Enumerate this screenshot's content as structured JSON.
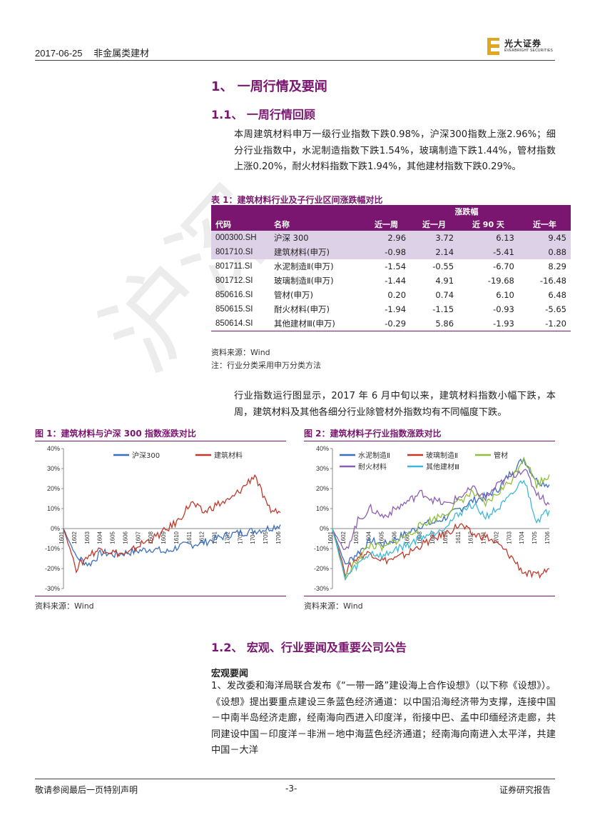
{
  "header": {
    "date": "2017-06-25",
    "category": "非金属类建材"
  },
  "logo": {
    "cn": "光大证券",
    "en": "EVERBRIGHT SECURITIES",
    "color": "#e0a81c"
  },
  "section1": {
    "title": "1、 一周行情及要闻"
  },
  "section11": {
    "title": "1.1、 一周行情回顾"
  },
  "para1": "本周建筑材料申万一级行业指数下跌0.98%，沪深300指数上涨2.96%；细分行业指数中，水泥制造指数下跌1.54%，玻璃制造下跌1.44%，管材指数上涨0.20%，耐火材料指数下跌1.94%，其他建材指数下跌0.29%。",
  "table": {
    "title": "表 1：建筑材料行业及子行业区间涨跌幅对比",
    "group_header": "涨跌幅",
    "headers": [
      "代码",
      "名称",
      "近一周",
      "近一月",
      "近 90 天",
      "近一年"
    ],
    "rows": [
      [
        "000300.SH",
        "沪深 300",
        "2.96",
        "3.72",
        "6.13",
        "9.45"
      ],
      [
        "801710.SI",
        "建筑材料(申万)",
        "-0.98",
        "2.14",
        "-5.41",
        "0.88"
      ],
      [
        "801711.SI",
        "水泥制造Ⅱ(申万)",
        "-1.54",
        "-0.55",
        "-6.70",
        "8.29"
      ],
      [
        "801712.SI",
        "玻璃制造Ⅱ(申万)",
        "-1.44",
        "4.91",
        "-19.68",
        "-16.48"
      ],
      [
        "850616.SI",
        "管材(申万)",
        "0.20",
        "0.74",
        "6.10",
        "6.48"
      ],
      [
        "850615.SI",
        "耐火材料(申万)",
        "-1.94",
        "-1.15",
        "-0.93",
        "-5.65"
      ],
      [
        "850614.SI",
        "其他建材Ⅲ(申万)",
        "-0.29",
        "5.86",
        "-1.93",
        "-1.20"
      ]
    ],
    "source": "资料来源：Wind",
    "note": "注：行业分类采用申万分类方法"
  },
  "para2": "行业指数运行图显示，2017 年 6 月中旬以来，建筑材料指数小幅下跌，本周，建筑材料及其他各细分行业除管材外指数均有不同幅度下跌。",
  "chart_data": [
    {
      "type": "line",
      "title": "图 1：建筑材料与沪深 300 指数涨跌对比",
      "source": "资料来源：Wind",
      "ylim": [
        -30,
        40
      ],
      "yticks": [
        "40%",
        "30%",
        "20%",
        "10%",
        "0%",
        "-10%",
        "-20%",
        "-30%"
      ],
      "xticks": [
        "1601",
        "1602",
        "1603",
        "1604",
        "1605",
        "1606",
        "1607",
        "1608",
        "1609",
        "1610",
        "1611",
        "1612",
        "1701",
        "1702",
        "1703",
        "1704",
        "1705",
        "1706"
      ],
      "series": [
        {
          "name": "沪深300",
          "color": "#3a6fbf",
          "values": [
            0,
            -14,
            -18,
            -12,
            -13,
            -12,
            -11,
            -10,
            -12,
            -9,
            -8,
            -7,
            -5,
            -3,
            -2,
            -1,
            0,
            2
          ]
        },
        {
          "name": "建筑材料",
          "color": "#c0392b",
          "values": [
            0,
            -20,
            -13,
            -10,
            -12,
            -13,
            -8,
            -5,
            -1,
            4,
            13,
            8,
            12,
            14,
            20,
            27,
            10,
            8
          ]
        }
      ]
    },
    {
      "type": "line",
      "title": "图 2：建筑材料子行业指数涨跌对比",
      "source": "资料来源：Wind",
      "ylim": [
        -30,
        40
      ],
      "yticks": [
        "40%",
        "30%",
        "20%",
        "10%",
        "0%",
        "-10%",
        "-20%",
        "-30%"
      ],
      "xticks": [
        "1601",
        "1602",
        "1603",
        "1604",
        "1605",
        "1606",
        "1607",
        "1608",
        "1609",
        "1610",
        "1611",
        "1612",
        "1701",
        "1702",
        "1703",
        "1704",
        "1705",
        "1706"
      ],
      "series": [
        {
          "name": "水泥制造Ⅱ",
          "color": "#3a6fbf",
          "values": [
            0,
            -18,
            -12,
            -6,
            -8,
            -5,
            -2,
            2,
            3,
            6,
            10,
            14,
            16,
            20,
            28,
            35,
            24,
            22
          ]
        },
        {
          "name": "玻璃制造Ⅱ",
          "color": "#c0392b",
          "values": [
            0,
            -22,
            -14,
            -12,
            -16,
            -15,
            -12,
            -8,
            -5,
            -2,
            2,
            -3,
            -4,
            -8,
            -14,
            -22,
            -24,
            -20
          ]
        },
        {
          "name": "管材",
          "color": "#8fbf3a",
          "values": [
            0,
            -25,
            -15,
            -8,
            -10,
            -6,
            -3,
            2,
            5,
            8,
            14,
            18,
            12,
            18,
            24,
            36,
            22,
            27
          ]
        },
        {
          "name": "耐火材料",
          "color": "#8e5fb0",
          "values": [
            0,
            -12,
            4,
            10,
            6,
            10,
            14,
            18,
            14,
            12,
            16,
            20,
            15,
            22,
            26,
            30,
            18,
            12
          ]
        },
        {
          "name": "其他建材Ⅲ",
          "color": "#3fb8d6",
          "values": [
            0,
            -25,
            -18,
            -12,
            -14,
            -10,
            -8,
            -4,
            -2,
            2,
            8,
            12,
            6,
            10,
            16,
            25,
            4,
            9
          ]
        }
      ]
    }
  ],
  "section12": {
    "title": "1.2、 宏观、行业要闻及重要公司公告"
  },
  "sub_heading": "宏观要闻",
  "para3": "1、发改委和海洋局联合发布《“一带一路”建设海上合作设想》（以下称《设想》）。《设想》提出要重点建设三条蓝色经济通道：以中国沿海经济带为支撑，连接中国－中南半岛经济走廊，经南海向西进入印度洋，衔接中巴、孟中印缅经济走廊，共同建设中国－印度洋－非洲－地中海蓝色经济通道；经南海向南进入太平洋，共建中国－大洋",
  "footer": {
    "left": "敬请参阅最后一页特别声明",
    "page": "-3-",
    "right": "证券研究报告"
  },
  "watermark": "沪深"
}
